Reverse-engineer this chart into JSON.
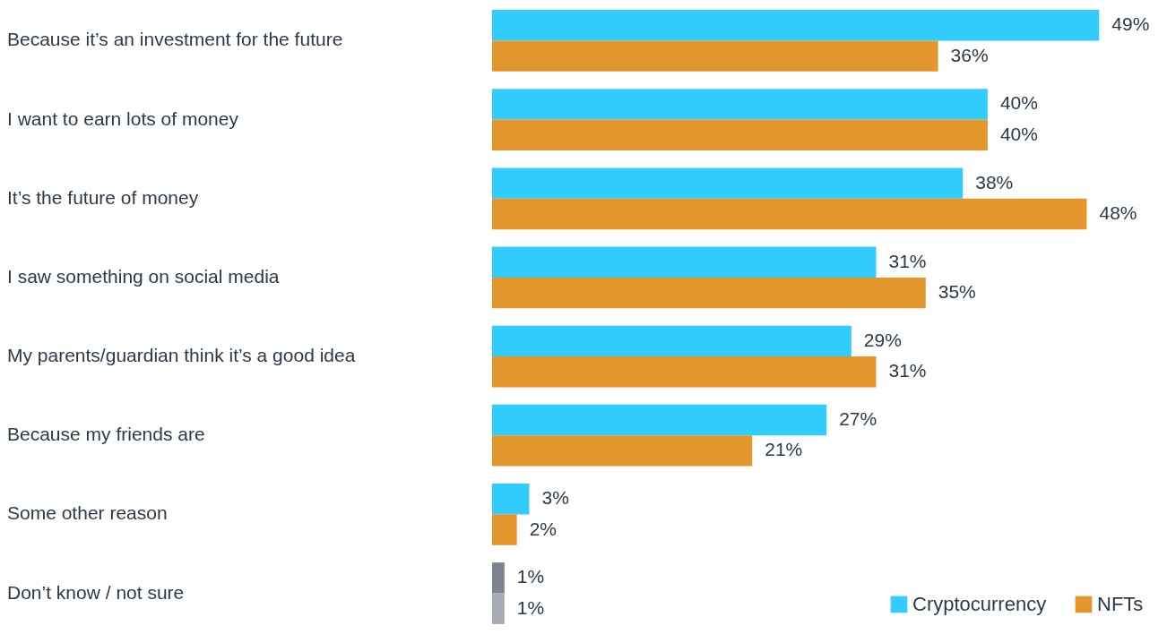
{
  "chart_data": {
    "type": "bar",
    "orientation": "horizontal",
    "legend": "bottom right",
    "categories": [
      "Because it’s an investment for the future",
      "I want to earn lots of money",
      "It’s the future of money",
      "I saw something on social media",
      "My parents/guardian think it’s a good idea",
      "Because my friends are",
      "Some other reason",
      "Don’t know / not sure"
    ],
    "series": [
      {
        "name": "Cryptocurrency",
        "color": "#33ccff",
        "colors": [
          "#33ccff",
          "#33ccff",
          "#33ccff",
          "#33ccff",
          "#33ccff",
          "#33ccff",
          "#33ccff",
          "#7f8290"
        ],
        "values": [
          49,
          40,
          38,
          31,
          29,
          27,
          3,
          1
        ],
        "value_labels": [
          "49%",
          "40%",
          "38%",
          "31%",
          "29%",
          "27%",
          "3%",
          "1%"
        ]
      },
      {
        "name": "NFTs",
        "color": "#e3962b",
        "colors": [
          "#e3962b",
          "#e3962b",
          "#e3962b",
          "#e3962b",
          "#e3962b",
          "#e3962b",
          "#e3962b",
          "#a7abb5"
        ],
        "values": [
          36,
          40,
          48,
          35,
          31,
          21,
          2,
          1
        ],
        "value_labels": [
          "36%",
          "40%",
          "48%",
          "35%",
          "31%",
          "21%",
          "2%",
          "1%"
        ]
      }
    ]
  }
}
